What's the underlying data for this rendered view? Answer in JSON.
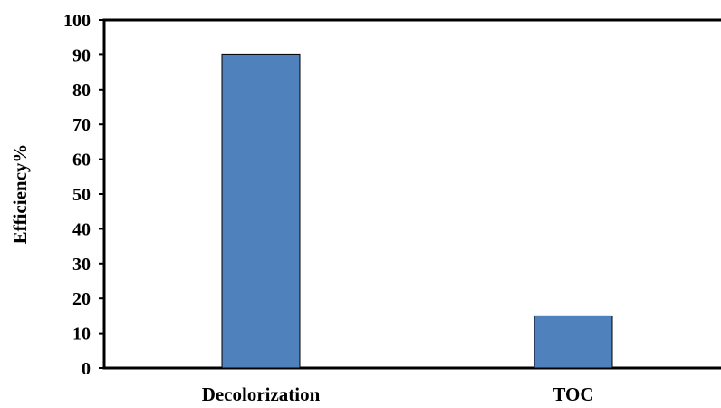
{
  "chart_data": {
    "type": "bar",
    "title": "",
    "xlabel": "",
    "ylabel": "Efficiency%",
    "categories": [
      "Decolorization",
      "TOC"
    ],
    "values": [
      90,
      15
    ],
    "ylim": [
      0,
      100
    ],
    "yticks": [
      0,
      10,
      20,
      30,
      40,
      50,
      60,
      70,
      80,
      90,
      100
    ],
    "grid": false,
    "legend": "none",
    "bar_color": "#4F81BD",
    "bar_edge_color": "#000000"
  }
}
